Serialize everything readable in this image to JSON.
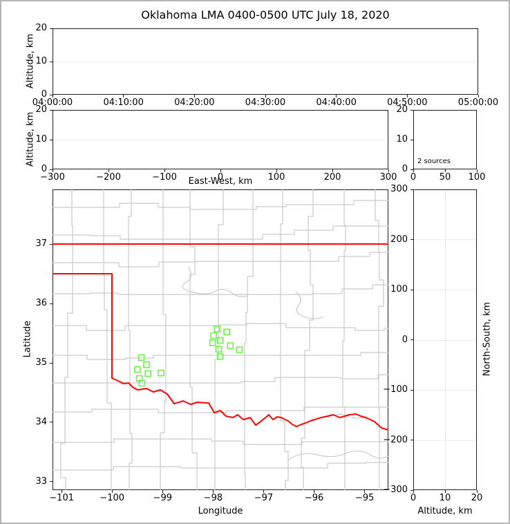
{
  "title": "Oklahoma LMA 0400-0500 UTC July 18, 2020",
  "colors": {
    "figure_frame": "#b4b4b4",
    "axes_edge": "#1b1b1b",
    "grid": "#ededed",
    "county_line": "#c9c9c9",
    "state_border": "#ff0000",
    "marker": "#6cf24a"
  },
  "panels": {
    "time_altitude": {
      "ylabel": "Altitude, km",
      "ylim": [
        0,
        20
      ],
      "yticks": [
        0,
        10,
        20
      ],
      "xticks": [
        "04:00:00",
        "04:10:00",
        "04:20:00",
        "04:30:00",
        "04:40:00",
        "04:50:00",
        "05:00:00"
      ]
    },
    "eastwest_altitude": {
      "xlabel": "East-West, km",
      "ylabel": "Altitude, km",
      "xlim": [
        -300,
        300
      ],
      "ylim": [
        0,
        20
      ],
      "xticks": [
        -300,
        -200,
        -100,
        0,
        100,
        200,
        300
      ],
      "yticks": [
        0,
        10,
        20
      ]
    },
    "altitude_histogram": {
      "annotation": "2 sources",
      "xlim": [
        0,
        100
      ],
      "ylim": [
        0,
        20
      ],
      "xticks": [
        0,
        50,
        100
      ],
      "yticks": [
        0,
        10,
        20
      ]
    },
    "map": {
      "xlabel": "Longitude",
      "ylabel": "Latitude",
      "xlim": [
        -101.18,
        -94.53
      ],
      "ylim": [
        32.86,
        37.92
      ],
      "xticks": [
        -101,
        -100,
        -99,
        -98,
        -97,
        -96,
        -95
      ],
      "yticks": [
        33,
        34,
        35,
        36,
        37
      ]
    },
    "northsouth_altitude": {
      "xlabel": "Altitude, km",
      "ylabel": "North-South, km",
      "xlim": [
        0,
        20
      ],
      "ylim": [
        -300,
        300
      ],
      "xticks": [
        0,
        10,
        20
      ],
      "yticks": [
        -300,
        -200,
        -100,
        0,
        100,
        200,
        300
      ]
    }
  },
  "chart_data": [
    {
      "type": "scatter",
      "panel": "time-altitude",
      "title": "Oklahoma LMA 0400-0500 UTC July 18, 2020",
      "xlabel": "",
      "ylabel": "Altitude, km",
      "x_range": [
        "04:00:00",
        "05:00:00"
      ],
      "ylim": [
        0,
        20
      ],
      "points": []
    },
    {
      "type": "scatter",
      "panel": "eastwest-altitude",
      "xlabel": "East-West, km",
      "ylabel": "Altitude, km",
      "xlim": [
        -300,
        300
      ],
      "ylim": [
        0,
        20
      ],
      "points": []
    },
    {
      "type": "histogram",
      "panel": "altitude-histogram",
      "annotation": "2 sources",
      "xlim": [
        0,
        100
      ],
      "ylim": [
        0,
        20
      ],
      "bars": []
    },
    {
      "type": "scatter",
      "panel": "map-plan-view",
      "xlabel": "Longitude",
      "ylabel": "Latitude",
      "xlim": [
        -101.18,
        -94.53
      ],
      "ylim": [
        32.86,
        37.92
      ],
      "marker": "open-square",
      "marker_color": "#6cf24a",
      "points_lonlat": [
        [
          -97.92,
          35.57
        ],
        [
          -97.73,
          35.52
        ],
        [
          -97.99,
          35.46
        ],
        [
          -97.86,
          35.38
        ],
        [
          -98.01,
          35.34
        ],
        [
          -97.66,
          35.29
        ],
        [
          -97.89,
          35.23
        ],
        [
          -97.48,
          35.22
        ],
        [
          -97.86,
          35.11
        ],
        [
          -99.42,
          35.09
        ],
        [
          -99.32,
          34.97
        ],
        [
          -99.5,
          34.89
        ],
        [
          -99.29,
          34.82
        ],
        [
          -99.03,
          34.83
        ],
        [
          -99.46,
          34.74
        ],
        [
          -99.41,
          34.66
        ]
      ]
    },
    {
      "type": "scatter",
      "panel": "northsouth-altitude",
      "xlabel": "Altitude, km",
      "ylabel": "North-South, km",
      "xlim": [
        0,
        20
      ],
      "ylim": [
        -300,
        300
      ],
      "points": []
    }
  ]
}
